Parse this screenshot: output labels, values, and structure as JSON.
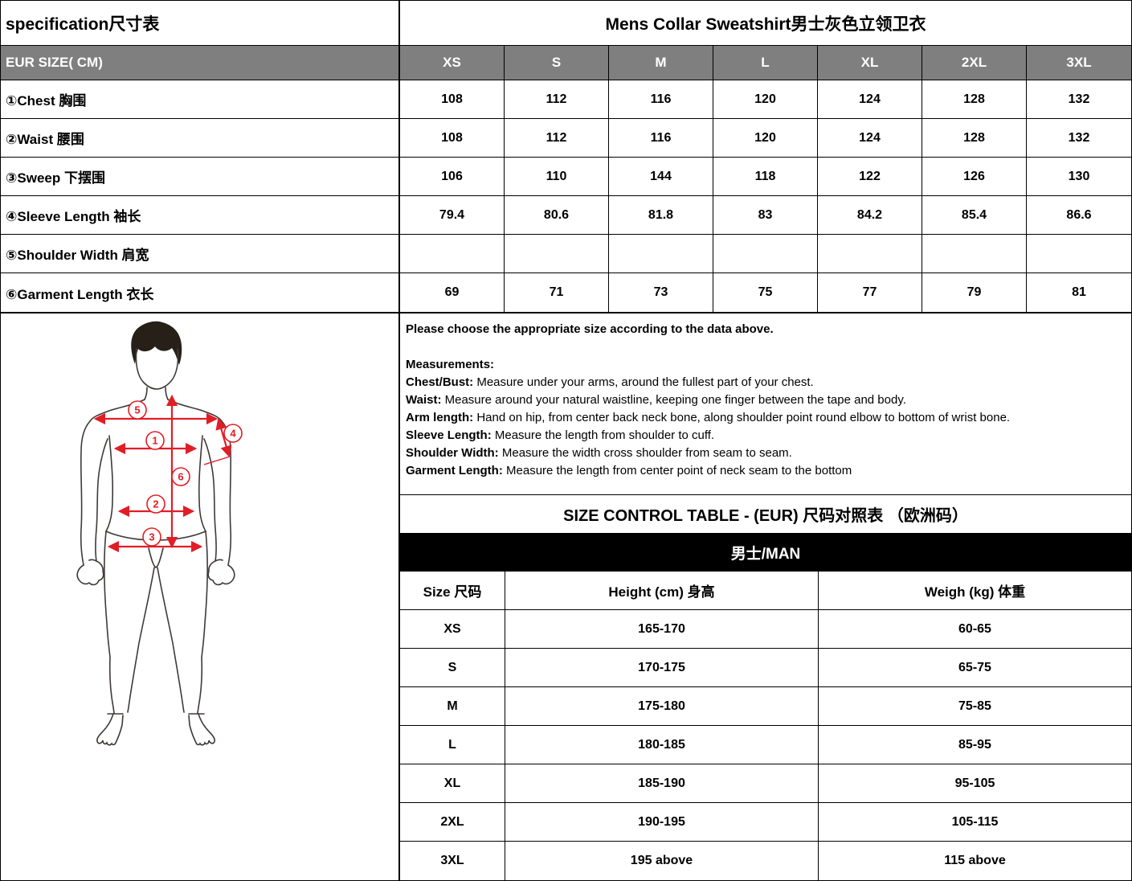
{
  "colors": {
    "header_gray": "#7f7f7f",
    "band_black": "#000000",
    "accent_red": "#e11d26"
  },
  "top_table": {
    "title_left": "specification尺寸表",
    "title_right": "Mens Collar Sweatshirt男士灰色立领卫衣",
    "header_label": "EUR SIZE( CM)",
    "size_columns": [
      "XS",
      "S",
      "M",
      "L",
      "XL",
      "2XL",
      "3XL"
    ],
    "rows": [
      {
        "label": "①Chest 胸围",
        "values": [
          "108",
          "112",
          "116",
          "120",
          "124",
          "128",
          "132"
        ]
      },
      {
        "label": "②Waist 腰围",
        "values": [
          "108",
          "112",
          "116",
          "120",
          "124",
          "128",
          "132"
        ]
      },
      {
        "label": "③Sweep 下摆围",
        "values": [
          "106",
          "110",
          "144",
          "118",
          "122",
          "126",
          "130"
        ]
      },
      {
        "label": "④Sleeve Length 袖长",
        "values": [
          "79.4",
          "80.6",
          "81.8",
          "83",
          "84.2",
          "85.4",
          "86.6"
        ]
      },
      {
        "label": "⑤Shoulder Width 肩宽",
        "values": [
          "",
          "",
          "",
          "",
          "",
          "",
          ""
        ]
      },
      {
        "label": "⑥Garment Length 衣长",
        "values": [
          "69",
          "71",
          "73",
          "75",
          "77",
          "79",
          "81"
        ]
      }
    ]
  },
  "instructions": {
    "intro": "Please choose the appropriate size according to the data above.",
    "heading": "Measurements:",
    "items": [
      {
        "term": "Chest/Bust:",
        "desc": " Measure under your arms, around the fullest part of your chest."
      },
      {
        "term": "Waist:",
        "desc": " Measure around your natural waistline, keeping one finger between the tape and body."
      },
      {
        "term": "Arm length:",
        "desc": " Hand on hip, from center back neck bone, along shoulder point round elbow to bottom of wrist bone."
      },
      {
        "term": "Sleeve Length:",
        "desc": " Measure the length from shoulder to cuff."
      },
      {
        "term": "Shoulder Width:",
        "desc": " Measure the width cross shoulder from seam to seam."
      },
      {
        "term": "Garment Length:",
        "desc": " Measure the length from center point of neck seam to the bottom"
      }
    ]
  },
  "control_table": {
    "title": "SIZE CONTROL TABLE - (EUR) 尺码对照表 （欧洲码）",
    "band": "男士/MAN",
    "columns": [
      "Size 尺码",
      "Height (cm) 身高",
      "Weigh (kg) 体重"
    ],
    "rows": [
      {
        "size": "XS",
        "height": "165-170",
        "weight": "60-65"
      },
      {
        "size": "S",
        "height": "170-175",
        "weight": "65-75"
      },
      {
        "size": "M",
        "height": "175-180",
        "weight": "75-85"
      },
      {
        "size": "L",
        "height": "180-185",
        "weight": "85-95"
      },
      {
        "size": "XL",
        "height": "185-190",
        "weight": "95-105"
      },
      {
        "size": "2XL",
        "height": "190-195",
        "weight": "105-115"
      },
      {
        "size": "3XL",
        "height": "195 above",
        "weight": "115 above"
      }
    ]
  },
  "figure": {
    "callouts": [
      "1",
      "2",
      "3",
      "4",
      "5",
      "6"
    ]
  }
}
